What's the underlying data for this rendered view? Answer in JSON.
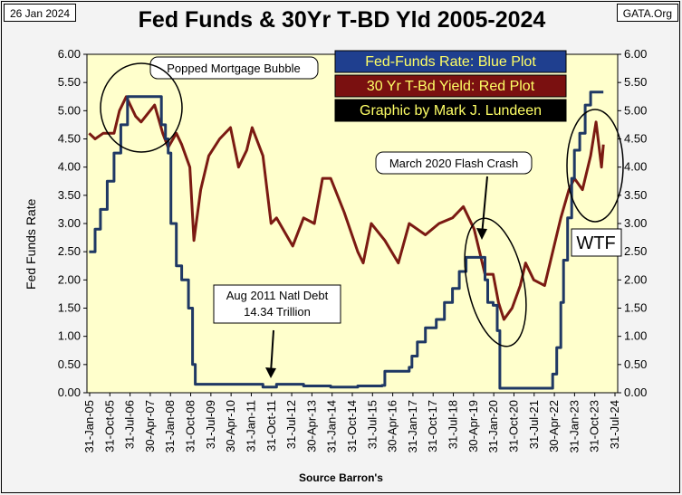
{
  "header": {
    "date": "26 Jan 2024",
    "site": "GATA.Org",
    "title": "Fed Funds & 30Yr T-BD Yld 2005-2024"
  },
  "chart_data": {
    "type": "line",
    "title": "Fed Funds & 30Yr T-BD Yld 2005-2024",
    "ylabel": "Fed  Funds  Rate",
    "xlabel": "Source Barron's",
    "ylim": [
      0,
      6
    ],
    "y_ticks": [
      "0.00",
      "0.50",
      "1.00",
      "1.50",
      "2.00",
      "2.50",
      "3.00",
      "3.50",
      "4.00",
      "4.50",
      "5.00",
      "5.50",
      "6.00"
    ],
    "x_ticks": [
      "31-Jan-05",
      "31-Oct-05",
      "31-Jul-06",
      "30-Apr-07",
      "31-Jan-08",
      "31-Oct-08",
      "31-Jul-09",
      "30-Apr-10",
      "31-Jan-11",
      "31-Oct-11",
      "31-Jul-12",
      "30-Apr-13",
      "31-Jan-14",
      "31-Oct-14",
      "31-Jul-15",
      "30-Apr-16",
      "31-Jan-17",
      "31-Oct-17",
      "31-Jul-18",
      "30-Apr-19",
      "31-Jan-20",
      "31-Oct-20",
      "31-Jul-21",
      "30-Apr-22",
      "31-Jan-23",
      "31-Oct-23",
      "31-Jul-24"
    ],
    "grid": false,
    "legend": [
      {
        "text": "Fed-Funds Rate: Blue Plot",
        "bg": "#1f3f8f",
        "color": "#ffff66"
      },
      {
        "text": "30 Yr T-Bd Yield: Red Plot",
        "bg": "#7a1010",
        "color": "#ffff66"
      },
      {
        "text": "Graphic by Mark J. Lundeen",
        "bg": "#000000",
        "color": "#ffff66"
      }
    ],
    "annotations": {
      "bubble": "Popped Mortgage  Bubble",
      "crash": "March 2020  Flash Crash",
      "debt_line1": "Aug 2011  Natl Debt",
      "debt_line2": "14.34  Trillion",
      "wtf": "WTF"
    },
    "colors": {
      "fed": "#1f3864",
      "tbond": "#7b1a12",
      "plot_bg": "#ffffcc"
    },
    "series": [
      {
        "name": "Fed-Funds Rate",
        "x": [
          2005.08,
          2005.3,
          2005.5,
          2005.75,
          2006.0,
          2006.25,
          2006.5,
          2007.0,
          2007.6,
          2007.75,
          2007.9,
          2008.0,
          2008.1,
          2008.3,
          2008.5,
          2008.75,
          2008.9,
          2009.0,
          2010.0,
          2011.0,
          2011.5,
          2012.0,
          2013.0,
          2014.0,
          2015.0,
          2015.9,
          2016.0,
          2016.9,
          2017.0,
          2017.2,
          2017.5,
          2017.9,
          2018.2,
          2018.5,
          2018.75,
          2019.0,
          2019.5,
          2019.7,
          2019.8,
          2020.0,
          2020.15,
          2020.25,
          2021.0,
          2022.0,
          2022.2,
          2022.35,
          2022.5,
          2022.6,
          2022.75,
          2022.9,
          2023.0,
          2023.2,
          2023.4,
          2023.6,
          2024.07
        ],
        "values": [
          2.5,
          2.9,
          3.25,
          3.75,
          4.25,
          4.75,
          5.25,
          5.25,
          5.25,
          4.75,
          4.5,
          4.25,
          3.0,
          2.25,
          2.0,
          1.5,
          0.5,
          0.15,
          0.15,
          0.15,
          0.1,
          0.15,
          0.12,
          0.1,
          0.12,
          0.13,
          0.38,
          0.45,
          0.65,
          0.9,
          1.15,
          1.3,
          1.6,
          1.85,
          2.15,
          2.4,
          2.4,
          2.0,
          1.6,
          1.55,
          1.1,
          0.08,
          0.08,
          0.08,
          0.33,
          0.8,
          1.6,
          2.35,
          3.1,
          3.8,
          4.3,
          4.6,
          5.1,
          5.33,
          5.33
        ]
      },
      {
        "name": "30 Yr T-Bd Yield",
        "x": [
          2005.08,
          2005.3,
          2005.6,
          2006.0,
          2006.2,
          2006.45,
          2006.8,
          2007.0,
          2007.5,
          2007.8,
          2008.0,
          2008.3,
          2008.5,
          2008.8,
          2008.95,
          2009.2,
          2009.5,
          2009.9,
          2010.3,
          2010.6,
          2010.9,
          2011.1,
          2011.5,
          2011.8,
          2012.0,
          2012.6,
          2013.0,
          2013.4,
          2013.7,
          2014.0,
          2014.5,
          2015.0,
          2015.2,
          2015.5,
          2016.0,
          2016.5,
          2016.9,
          2017.5,
          2018.0,
          2018.5,
          2018.9,
          2019.3,
          2019.7,
          2020.0,
          2020.2,
          2020.4,
          2020.7,
          2021.0,
          2021.2,
          2021.5,
          2021.9,
          2022.1,
          2022.5,
          2022.8,
          2023.0,
          2023.3,
          2023.6,
          2023.8,
          2023.9,
          2024.0,
          2024.07
        ],
        "values": [
          4.6,
          4.5,
          4.6,
          4.6,
          5.0,
          5.25,
          4.9,
          4.8,
          5.1,
          4.6,
          4.35,
          4.6,
          4.4,
          4.0,
          2.7,
          3.6,
          4.2,
          4.5,
          4.7,
          4.0,
          4.3,
          4.7,
          4.2,
          3.0,
          3.1,
          2.6,
          3.1,
          3.0,
          3.8,
          3.8,
          3.2,
          2.5,
          2.3,
          3.0,
          2.7,
          2.3,
          3.0,
          2.8,
          3.0,
          3.1,
          3.3,
          2.9,
          2.1,
          2.1,
          1.6,
          1.3,
          1.5,
          1.9,
          2.3,
          2.0,
          1.9,
          2.3,
          3.1,
          3.6,
          3.8,
          3.6,
          4.2,
          4.8,
          4.4,
          4.0,
          4.4
        ]
      }
    ]
  }
}
